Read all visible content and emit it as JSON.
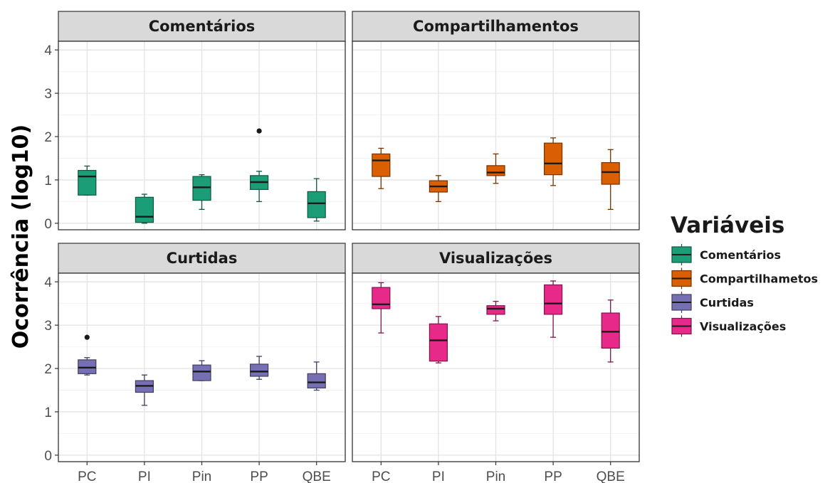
{
  "chart_data": {
    "type": "boxplot",
    "ylabel": "Ocorrência (log10)",
    "ylim": [
      -0.15,
      4.2
    ],
    "yticks": [
      0,
      1,
      2,
      3,
      4
    ],
    "categories": [
      "PC",
      "PI",
      "Pin",
      "PP",
      "QBE"
    ],
    "legend": {
      "title": "Variáveis",
      "position": "right",
      "entries": [
        "Comentários",
        "Compartilhametos",
        "Curtidas",
        "Visualizações"
      ]
    },
    "grid": true,
    "panels": [
      {
        "title": "Comentários",
        "color": "#1b9e77",
        "boxes": [
          {
            "category": "PC",
            "min": 0.65,
            "q1": 0.65,
            "median": 1.08,
            "q3": 1.22,
            "max": 1.32,
            "outliers": []
          },
          {
            "category": "PI",
            "min": 0.0,
            "q1": 0.02,
            "median": 0.15,
            "q3": 0.6,
            "max": 0.67,
            "outliers": []
          },
          {
            "category": "Pin",
            "min": 0.32,
            "q1": 0.53,
            "median": 0.83,
            "q3": 1.08,
            "max": 1.12,
            "outliers": []
          },
          {
            "category": "PP",
            "min": 0.5,
            "q1": 0.78,
            "median": 0.95,
            "q3": 1.1,
            "max": 1.2,
            "outliers": [
              2.13
            ]
          },
          {
            "category": "QBE",
            "min": 0.05,
            "q1": 0.13,
            "median": 0.46,
            "q3": 0.73,
            "max": 1.03,
            "outliers": []
          }
        ]
      },
      {
        "title": "Compartilhamentos",
        "color": "#d95f02",
        "boxes": [
          {
            "category": "PC",
            "min": 0.8,
            "q1": 1.08,
            "median": 1.45,
            "q3": 1.6,
            "max": 1.73,
            "outliers": []
          },
          {
            "category": "PI",
            "min": 0.5,
            "q1": 0.72,
            "median": 0.85,
            "q3": 0.98,
            "max": 1.1,
            "outliers": []
          },
          {
            "category": "Pin",
            "min": 0.92,
            "q1": 1.1,
            "median": 1.17,
            "q3": 1.33,
            "max": 1.6,
            "outliers": []
          },
          {
            "category": "PP",
            "min": 0.87,
            "q1": 1.12,
            "median": 1.38,
            "q3": 1.85,
            "max": 1.97,
            "outliers": []
          },
          {
            "category": "QBE",
            "min": 0.32,
            "q1": 0.9,
            "median": 1.18,
            "q3": 1.4,
            "max": 1.7,
            "outliers": []
          }
        ]
      },
      {
        "title": "Curtidas",
        "color": "#7570b3",
        "boxes": [
          {
            "category": "PC",
            "min": 1.85,
            "q1": 1.88,
            "median": 2.02,
            "q3": 2.2,
            "max": 2.25,
            "outliers": [
              2.72
            ]
          },
          {
            "category": "PI",
            "min": 1.15,
            "q1": 1.45,
            "median": 1.6,
            "q3": 1.72,
            "max": 1.85,
            "outliers": []
          },
          {
            "category": "Pin",
            "min": 1.72,
            "q1": 1.72,
            "median": 1.93,
            "q3": 2.08,
            "max": 2.18,
            "outliers": []
          },
          {
            "category": "PP",
            "min": 1.75,
            "q1": 1.82,
            "median": 1.93,
            "q3": 2.1,
            "max": 2.28,
            "outliers": []
          },
          {
            "category": "QBE",
            "min": 1.5,
            "q1": 1.55,
            "median": 1.68,
            "q3": 1.88,
            "max": 2.15,
            "outliers": []
          }
        ]
      },
      {
        "title": "Visualizações",
        "color": "#e7298a",
        "boxes": [
          {
            "category": "PC",
            "min": 2.82,
            "q1": 3.38,
            "median": 3.48,
            "q3": 3.87,
            "max": 3.98,
            "outliers": []
          },
          {
            "category": "PI",
            "min": 2.13,
            "q1": 2.17,
            "median": 2.65,
            "q3": 3.03,
            "max": 3.2,
            "outliers": []
          },
          {
            "category": "Pin",
            "min": 3.1,
            "q1": 3.25,
            "median": 3.38,
            "q3": 3.45,
            "max": 3.55,
            "outliers": []
          },
          {
            "category": "PP",
            "min": 2.72,
            "q1": 3.25,
            "median": 3.5,
            "q3": 3.93,
            "max": 4.02,
            "outliers": []
          },
          {
            "category": "QBE",
            "min": 2.15,
            "q1": 2.47,
            "median": 2.85,
            "q3": 3.28,
            "max": 3.58,
            "outliers": []
          }
        ]
      }
    ]
  }
}
